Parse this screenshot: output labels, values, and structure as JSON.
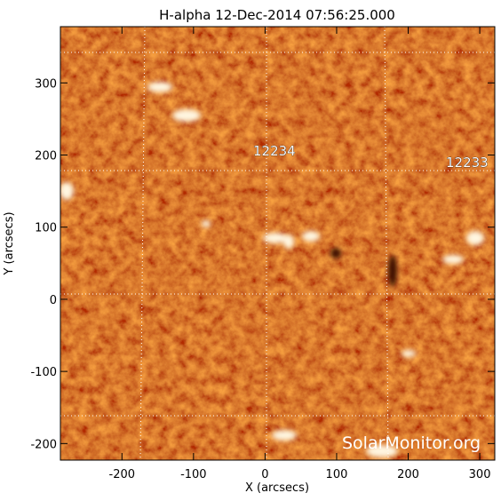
{
  "chart_data": {
    "type": "image",
    "title": "H-alpha 12-Dec-2014 07:56:25.000",
    "xlabel": "X (arcsecs)",
    "ylabel": "Y (arcsecs)",
    "xlim": [
      -286,
      321
    ],
    "ylim": [
      -223,
      378
    ],
    "xticks": [
      -200,
      -100,
      0,
      100,
      200,
      300
    ],
    "yticks": [
      -200,
      -100,
      0,
      100,
      200,
      300
    ],
    "annotations": [
      "12234",
      "12233"
    ],
    "watermark": "SolarMonitor.org"
  }
}
